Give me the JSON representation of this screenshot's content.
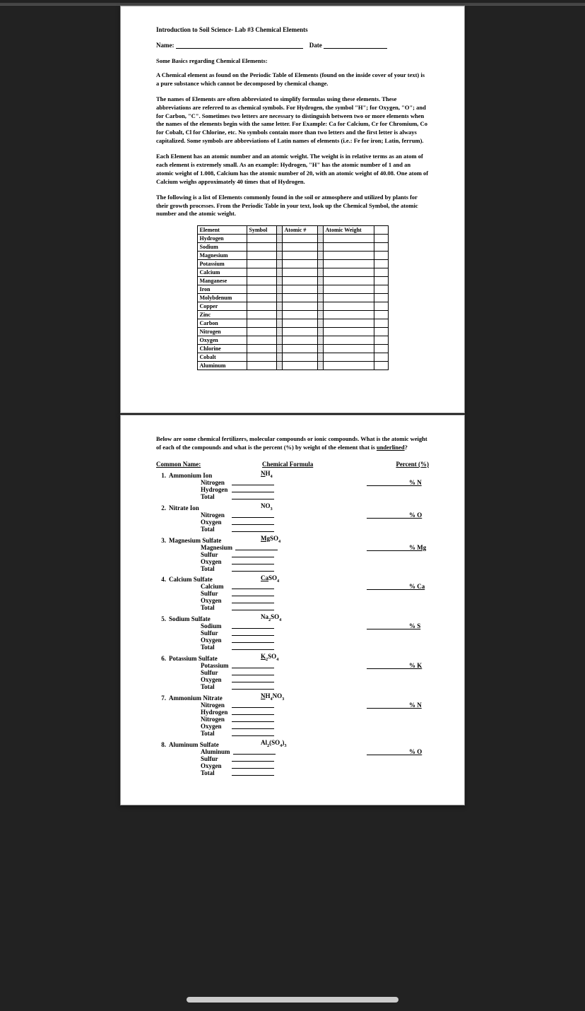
{
  "doc": {
    "title": "Introduction to Soil Science- Lab #3  Chemical Elements",
    "name_label": "Name:",
    "date_label": "Date",
    "basics_heading": "Some Basics regarding Chemical Elements:",
    "p1": "A Chemical element as found on the Periodic Table of Elements (found on the inside cover of your text) is a pure substance which cannot be decomposed by chemical change.",
    "p2": "The names of Elements are often abbreviated to simplify formulas using these elements.  These abbreviations are referred to as chemical symbols.  For Hydrogen, the symbol \"H\"; for Oxygen, \"O\"; and for Carbon, \"C\".  Sometimes two letters are necessary to distinguish between two or more elements when the names of the elements begin with the same letter.  For Example:  Ca for Calcium, Cr for Chromium, Co for Cobalt, Cl for Chlorine, etc.  No symbols contain more than two letters and the first letter is always capitalized.  Some symbols are abbreviations of Latin names of elements (i.e.: Fe for iron; Latin, ferrum).",
    "p3": "Each Element has an atomic number and an atomic weight.  The weight is in relative terms as an atom of each element is extremely small.   As an example:  Hydrogen, \"H\" has the atomic number of 1 and an atomic weight of 1.008, Calcium has the atomic number of 20, with an atomic weight of 40.08.  One atom of Calcium weighs approximately 40 times that of Hydrogen.",
    "p4": "The following is a list of Elements commonly found in the soil or atmosphere and utilized by plants for their growth processes.  From the Periodic Table in your text, look up the Chemical Symbol, the atomic number and the atomic weight.",
    "tbl": {
      "h": [
        "Element",
        "Symbol",
        "Atomic #",
        "Atomic Weight"
      ],
      "rows": [
        "Hydrogen",
        "Sodium",
        "Magnesium",
        "Potassium",
        "Calcium",
        "Manganese",
        "Iron",
        "Molybdenum",
        "Copper",
        "Zinc",
        "Carbon",
        "Nitrogen",
        "Oxygen",
        "Chlorine",
        "Cobalt",
        "Aluminum"
      ]
    }
  },
  "p2": {
    "intro": "Below are some chemical fertilizers, molecular compounds or ionic compounds.  What is the atomic weight of each of the compounds and what is the percent (%) by weight of the element that is ",
    "intro_u": "underlined",
    "intro_q": "?",
    "h": [
      "Common Name:",
      "Chemical Formula",
      "Percent (%)"
    ],
    "c": [
      {
        "n": "1.",
        "name": "Ammonium Ion",
        "f": "NH4",
        "u": "N",
        "pct": "% N",
        "sub": [
          "Nitrogen",
          "Hydrogen",
          "Total"
        ]
      },
      {
        "n": "2.",
        "name": "Nitrate Ion",
        "f": "NO3",
        "u": "",
        "pct": "% O",
        "sub": [
          "Nitrogen",
          "Oxygen",
          "Total"
        ]
      },
      {
        "n": "3.",
        "name": "Magnesium Sulfate",
        "f": "MgSO4",
        "u": "Mg",
        "pct": "% Mg",
        "sub": [
          "Magnesium",
          "Sulfur",
          "Oxygen",
          "Total"
        ]
      },
      {
        "n": "4.",
        "name": "Calcium Sulfate",
        "f": "CaSO4",
        "u": "Ca",
        "pct": "% Ca",
        "sub": [
          "Calcium",
          "Sulfur",
          "Oxygen",
          "Total"
        ]
      },
      {
        "n": "5.",
        "name": "Sodium Sulfate",
        "f": "Na2SO4",
        "u": "",
        "pct": "% S",
        "sub": [
          "Sodium",
          "Sulfur",
          "Oxygen",
          "Total"
        ]
      },
      {
        "n": "6.",
        "name": "Potassium Sulfate",
        "f": "K2SO4",
        "u": "K",
        "pct": "% K",
        "sub": [
          "Potassium",
          "Sulfur",
          "Oxygen",
          "Total"
        ]
      },
      {
        "n": "7.",
        "name": "Ammonium Nitrate",
        "f": "NH4NO3",
        "u": "N",
        "pct": "% N",
        "sub": [
          "Nitrogen",
          "Hydrogen",
          "Nitrogen",
          "Oxygen",
          "Total"
        ]
      },
      {
        "n": "8.",
        "name": "Aluminum Sulfate",
        "f": "Al2(SO4)3",
        "u": "",
        "pct": "% O",
        "sub": [
          "Aluminum",
          "Sulfur",
          "Oxygen",
          "Total"
        ]
      }
    ]
  }
}
